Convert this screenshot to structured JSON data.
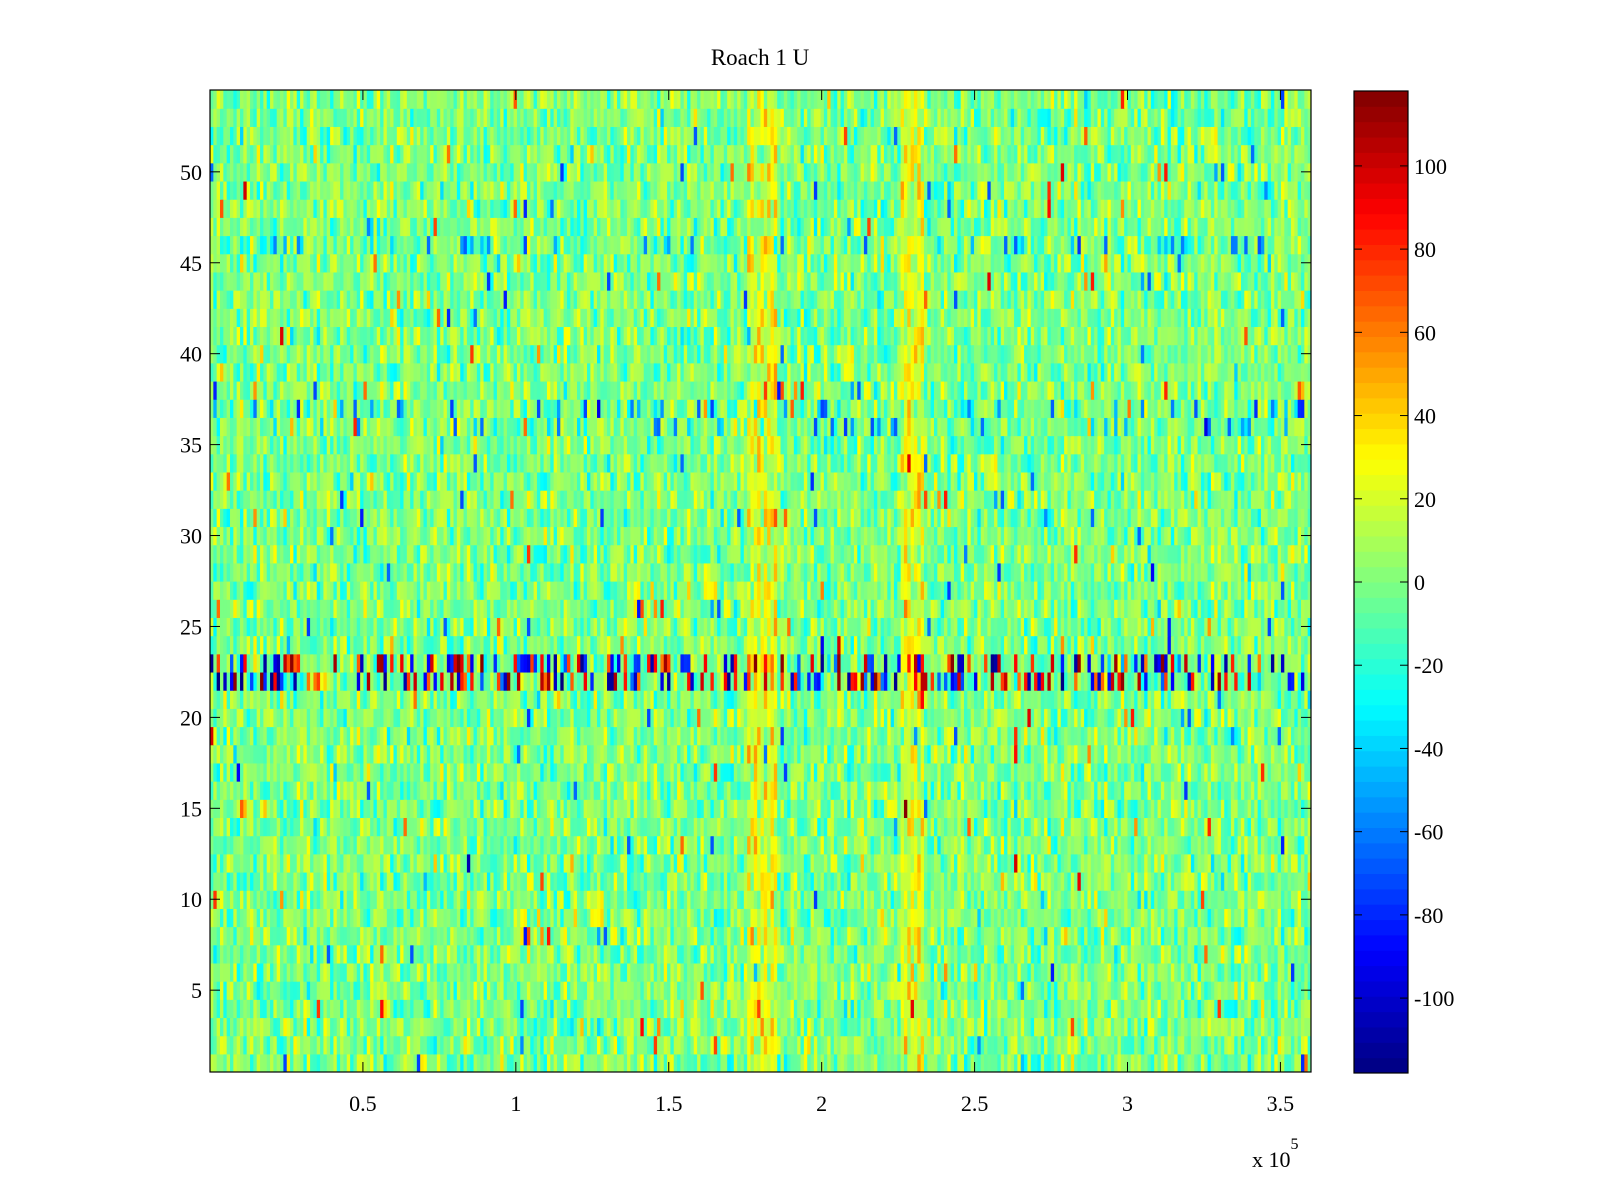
{
  "chart_data": {
    "type": "heatmap",
    "title": "Roach 1 U",
    "xlabel": "",
    "ylabel": "",
    "x_exponent_label": "x 10",
    "x_exponent": "5",
    "xlim": [
      0,
      3.6
    ],
    "ylim": [
      0.5,
      54.5
    ],
    "x_ticks": [
      0.5,
      1,
      1.5,
      2,
      2.5,
      3,
      3.5
    ],
    "x_tick_labels": [
      "0.5",
      "1",
      "1.5",
      "2",
      "2.5",
      "3",
      "3.5"
    ],
    "y_ticks": [
      5,
      10,
      15,
      20,
      25,
      30,
      35,
      40,
      45,
      50
    ],
    "y_tick_labels": [
      "5",
      "10",
      "15",
      "20",
      "25",
      "30",
      "35",
      "40",
      "45",
      "50"
    ],
    "rows": 54,
    "colormap": "jet",
    "colorbar": {
      "clim": [
        -118,
        118
      ],
      "ticks": [
        -100,
        -80,
        -60,
        -40,
        -20,
        0,
        20,
        40,
        60,
        80,
        100
      ],
      "tick_labels": [
        "-100",
        "-80",
        "-60",
        "-40",
        "-20",
        "0",
        "20",
        "40",
        "60",
        "80",
        "100"
      ]
    },
    "grid": false,
    "background_level": 0,
    "noise_level": 15,
    "features": [
      {
        "description": "high variance band of alternating extreme values",
        "rows": [
          21.5,
          23.5
        ],
        "level": "±110"
      },
      {
        "description": "elevated vertical band",
        "x_range": [
          1.76,
          1.86
        ],
        "level": 25
      },
      {
        "description": "elevated vertical band",
        "x_range": [
          2.26,
          2.34
        ],
        "level": 25
      },
      {
        "description": "negative horizontal streak",
        "rows": [
          36,
          37
        ],
        "level": -35
      },
      {
        "description": "negative horizontal streak",
        "rows": [
          46,
          46
        ],
        "level": -35
      }
    ]
  }
}
